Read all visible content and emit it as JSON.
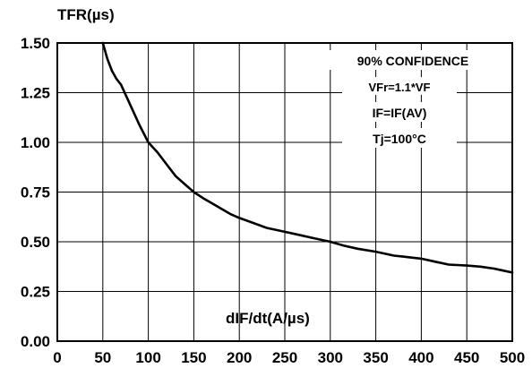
{
  "chart_data": {
    "type": "line",
    "ylabel": "TFR(µs)",
    "xlabel": "dIF/dt(A/µs)",
    "xlim": [
      0,
      500
    ],
    "ylim": [
      0,
      1.5
    ],
    "x_ticks": [
      "0",
      "50",
      "100",
      "150",
      "200",
      "250",
      "300",
      "350",
      "400",
      "450",
      "500"
    ],
    "y_ticks": [
      "0.00",
      "0.25",
      "0.50",
      "0.75",
      "1.00",
      "1.25",
      "1.50"
    ],
    "grid": true,
    "annotations": [
      "90% CONFIDENCE",
      "VFr=1.1*VF",
      "IF=IF(AV)",
      "Tj=100°C"
    ],
    "series": [
      {
        "x": [
          50,
          55,
          60,
          65,
          70,
          75,
          80,
          90,
          100,
          110,
          120,
          130,
          140,
          150,
          160,
          175,
          190,
          200,
          215,
          230,
          250,
          265,
          280,
          300,
          315,
          330,
          350,
          370,
          380,
          400,
          415,
          430,
          450,
          465,
          480,
          490,
          500
        ],
        "y": [
          1.5,
          1.42,
          1.36,
          1.32,
          1.29,
          1.24,
          1.19,
          1.09,
          1.0,
          0.95,
          0.89,
          0.83,
          0.79,
          0.75,
          0.72,
          0.68,
          0.64,
          0.62,
          0.595,
          0.57,
          0.55,
          0.535,
          0.52,
          0.5,
          0.48,
          0.465,
          0.45,
          0.43,
          0.425,
          0.415,
          0.4,
          0.385,
          0.38,
          0.375,
          0.365,
          0.355,
          0.345
        ]
      }
    ]
  }
}
